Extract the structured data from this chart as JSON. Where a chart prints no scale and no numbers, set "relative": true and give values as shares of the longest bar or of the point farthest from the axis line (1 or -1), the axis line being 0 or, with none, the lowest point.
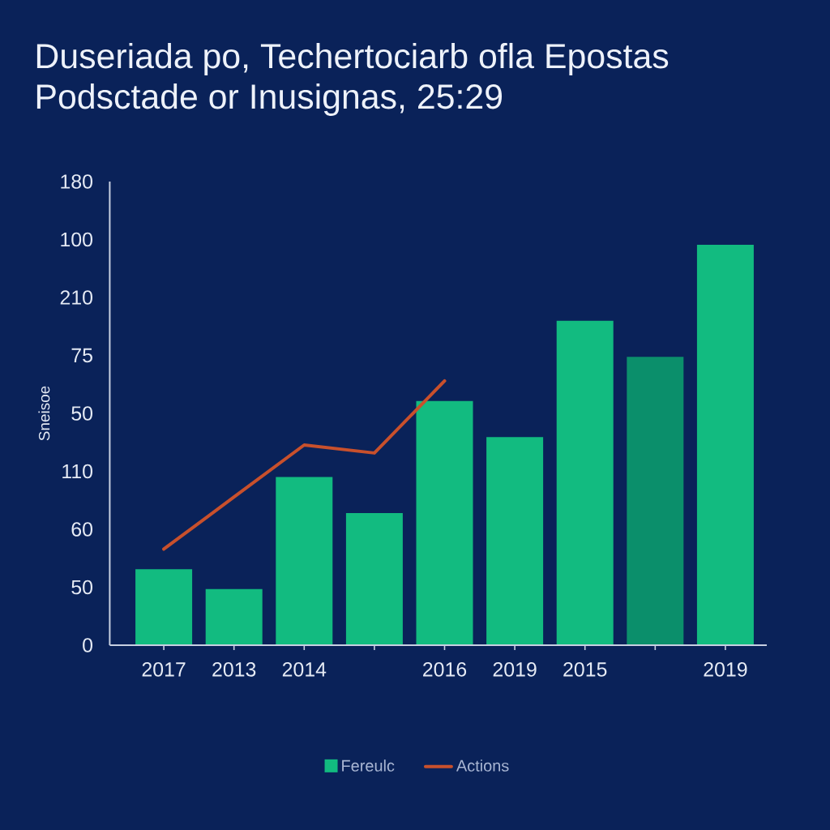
{
  "chart_data": {
    "type": "bar",
    "title": "Duseriada po, Techertociarb ofla Epostas",
    "subtitle": "Podsctade or Inusignas, 25:29",
    "ylabel": "Sneisoe",
    "relative": true,
    "categories": [
      "2017",
      "2013",
      "2014",
      null,
      "2016",
      "2019",
      "2015",
      null,
      "2019"
    ],
    "series": [
      {
        "name": "Fereulc",
        "colors": [
          "#12bb80",
          "#12bb80",
          "#12bb80",
          "#12bb80",
          "#12bb80",
          "#12bb80",
          "#12bb80",
          "#0b8f6b",
          "#12bb80"
        ],
        "values": [
          0.19,
          0.14,
          0.42,
          0.33,
          0.61,
          0.52,
          0.81,
          0.72,
          1
        ]
      },
      {
        "name": "Actions",
        "type": "line",
        "color": "#c8502c",
        "values": [
          0.24,
          0.37,
          0.5,
          0.48,
          0.66,
          null,
          null,
          null,
          null
        ]
      }
    ],
    "annotations": [
      "180",
      "100",
      "210",
      "75",
      "50",
      "110",
      "60",
      "50",
      "0"
    ],
    "legend": "bottom"
  }
}
